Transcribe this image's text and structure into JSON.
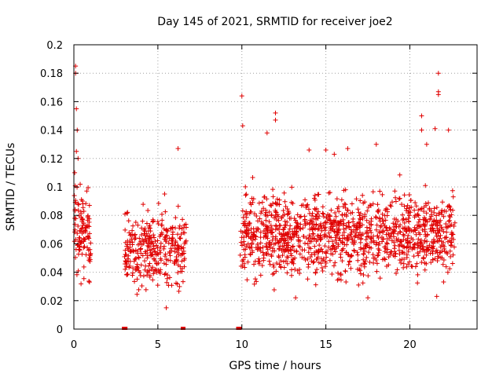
{
  "chart_data": {
    "type": "scatter",
    "title": "Day 145 of 2021, SRMTID for receiver joe2",
    "xlabel": "GPS time / hours",
    "ylabel": "SRMTID / TECUs",
    "xlim": [
      0,
      24
    ],
    "ylim": [
      0,
      0.2
    ],
    "x_ticks": [
      0,
      5,
      10,
      15,
      20
    ],
    "x_tick_labels": [
      "0",
      "5",
      "10",
      "15",
      "20"
    ],
    "y_ticks": [
      0,
      0.02,
      0.04,
      0.06,
      0.08,
      0.1,
      0.12,
      0.14,
      0.16,
      0.18,
      0.2
    ],
    "y_tick_labels": [
      "0",
      "0.02",
      "0.04",
      "0.06",
      "0.08",
      "0.1",
      "0.12",
      "0.14",
      "0.16",
      "0.18",
      "0.2"
    ],
    "grid": true,
    "marker": "plus",
    "series_color": "#e00000",
    "zero_points": [
      [
        3.0,
        0.0
      ],
      [
        3.05,
        0.0
      ],
      [
        9.8,
        0.0
      ],
      [
        9.85,
        0.0
      ],
      [
        6.5,
        0.0
      ]
    ],
    "segments": [
      {
        "x_start": 0.0,
        "x_end": 1.0,
        "n": 110,
        "y_mean": 0.068,
        "y_spread": 0.022
      },
      {
        "x_start": 3.0,
        "x_end": 6.7,
        "n": 320,
        "y_mean": 0.056,
        "y_spread": 0.018
      },
      {
        "x_start": 9.9,
        "x_end": 22.7,
        "n": 1250,
        "y_mean": 0.066,
        "y_spread": 0.02
      }
    ],
    "outliers": [
      [
        0.1,
        0.185
      ],
      [
        0.1,
        0.18
      ],
      [
        0.15,
        0.155
      ],
      [
        0.2,
        0.14
      ],
      [
        0.15,
        0.125
      ],
      [
        0.05,
        0.11
      ],
      [
        0.25,
        0.12
      ],
      [
        6.2,
        0.127
      ],
      [
        5.4,
        0.095
      ],
      [
        5.5,
        0.015
      ],
      [
        10.0,
        0.164
      ],
      [
        10.05,
        0.143
      ],
      [
        11.5,
        0.138
      ],
      [
        12.0,
        0.152
      ],
      [
        12.0,
        0.147
      ],
      [
        14.0,
        0.126
      ],
      [
        15.0,
        0.126
      ],
      [
        15.5,
        0.123
      ],
      [
        16.3,
        0.127
      ],
      [
        18.0,
        0.13
      ],
      [
        20.7,
        0.15
      ],
      [
        20.7,
        0.14
      ],
      [
        21.0,
        0.13
      ],
      [
        21.5,
        0.141
      ],
      [
        21.7,
        0.18
      ],
      [
        21.7,
        0.167
      ],
      [
        21.7,
        0.165
      ],
      [
        22.3,
        0.14
      ],
      [
        21.6,
        0.023
      ],
      [
        17.5,
        0.022
      ],
      [
        13.2,
        0.022
      ]
    ]
  }
}
